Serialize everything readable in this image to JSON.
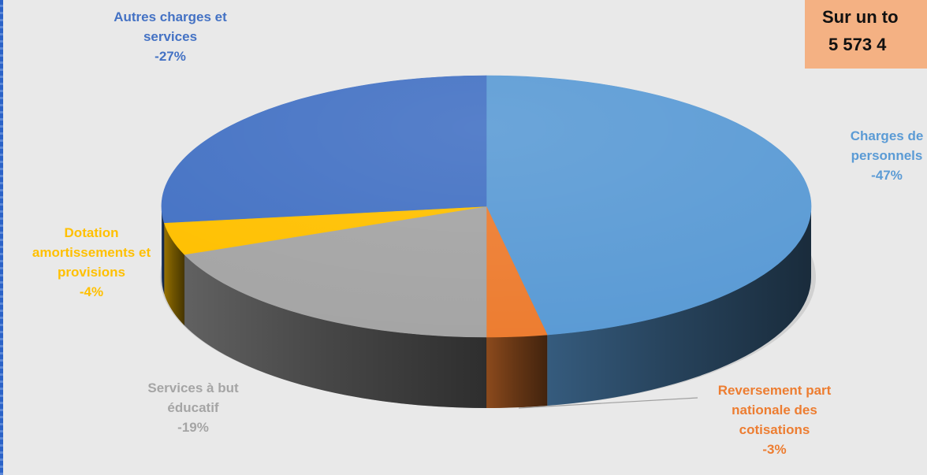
{
  "total": {
    "line1": "Sur un to",
    "line2": "5 573 4"
  },
  "chart_data": {
    "type": "pie",
    "title": "",
    "slices": [
      {
        "name": "Charges de personnels",
        "percent_label": "-47%",
        "value": 47,
        "color": "#5b9bd5"
      },
      {
        "name": "Reversement part nationale des cotisations",
        "percent_label": "-3%",
        "value": 3,
        "color": "#ed7d31"
      },
      {
        "name": "Services à but éducatif",
        "percent_label": "-19%",
        "value": 19,
        "color": "#a5a5a5"
      },
      {
        "name": "Dotation amortissements et provisions",
        "percent_label": "-4%",
        "value": 4,
        "color": "#ffc000"
      },
      {
        "name": "Autres charges et services",
        "percent_label": "-27%",
        "value": 27,
        "color": "#4472c4"
      }
    ]
  },
  "labels": {
    "autres": {
      "line1": "Autres charges et",
      "line2": "services",
      "pct": "-27%"
    },
    "charges": {
      "line1": "Charges de",
      "line2": "personnels",
      "pct": "-47%"
    },
    "dotation": {
      "line1": "Dotation",
      "line2": "amortissements et",
      "line3": "provisions",
      "pct": "-4%"
    },
    "services": {
      "line1": "Services à but",
      "line2": "éducatif",
      "pct": "-19%"
    },
    "reversement": {
      "line1": "Reversement part",
      "line2": "nationale des",
      "line3": "cotisations",
      "pct": "-3%"
    }
  }
}
